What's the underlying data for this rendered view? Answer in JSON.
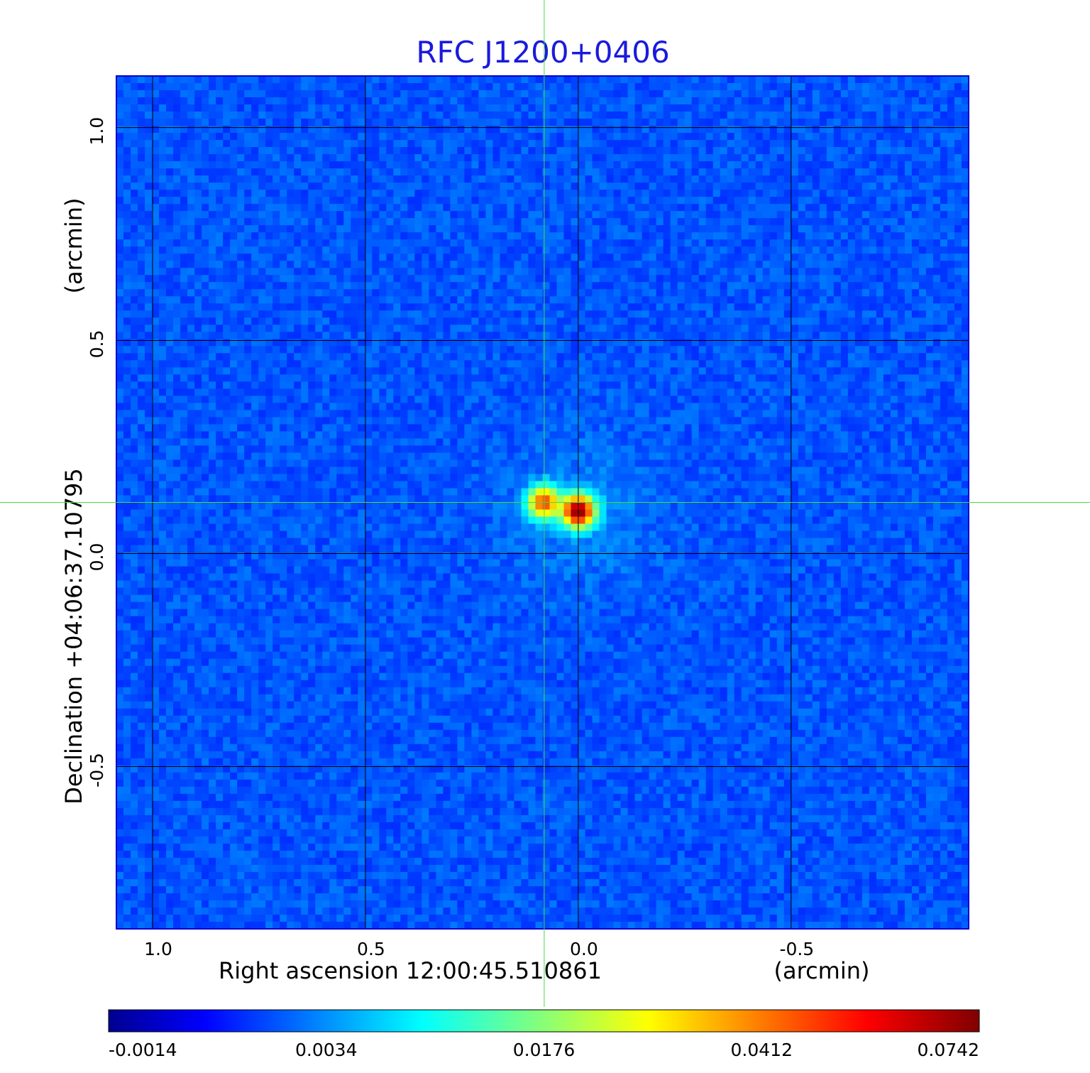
{
  "chart_data": {
    "type": "heatmap",
    "title": "RFC J1200+0406",
    "colormap": "jet",
    "xlabel": "Right ascension  12:00:45.510861",
    "xlabel_unit": "(arcmin)",
    "ylabel": "Declination  +04:06:37.10795",
    "ylabel_unit": "(arcmin)",
    "xlim": [
      1.085,
      -0.917
    ],
    "ylim": [
      -0.881,
      1.121
    ],
    "x_ticks": [
      1.0,
      0.5,
      0.0,
      -0.5
    ],
    "x_tick_labels": [
      "1.0",
      "0.5",
      "0.0",
      "-0.5"
    ],
    "y_ticks": [
      1.0,
      0.5,
      0.0,
      -0.5
    ],
    "y_tick_labels": [
      "1.0",
      "0.5",
      "0.0",
      "-0.5"
    ],
    "grid": true,
    "crosshair": {
      "x": 0.08,
      "y": 0.12,
      "color": "#44dd44"
    },
    "colorbar": {
      "ticks": [
        "-0.0014",
        "0.0034",
        "0.0176",
        "0.0412",
        "0.0742"
      ],
      "value_min": -0.0014,
      "value_max": 0.0742
    },
    "background_level": 0.0005,
    "sources": [
      {
        "x": 0.0,
        "y": 0.1,
        "peak": 0.0742
      },
      {
        "x": 0.08,
        "y": 0.12,
        "peak": 0.045
      }
    ]
  }
}
